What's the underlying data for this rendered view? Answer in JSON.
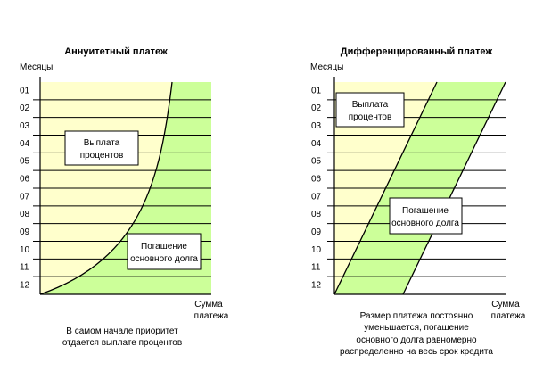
{
  "colors": {
    "interest_fill": "#ffffcc",
    "principal_fill": "#ccff99",
    "outline": "#000000"
  },
  "left": {
    "title": "Аннуитетный платеж",
    "y_axis_label": "Месяцы",
    "x_axis_label_line1": "Сумма",
    "x_axis_label_line2": "платежа",
    "months": [
      "01",
      "02",
      "03",
      "04",
      "05",
      "06",
      "07",
      "08",
      "09",
      "10",
      "11",
      "12"
    ],
    "interest_box_line1": "Выплата",
    "interest_box_line2": "процентов",
    "principal_box_line1": "Погашение",
    "principal_box_line2": "основного долга",
    "caption_line1": "В самом начале приоритет",
    "caption_line2": "отдается выплате процентов"
  },
  "right": {
    "title": "Дифференцированный платеж",
    "y_axis_label": "Месяцы",
    "x_axis_label_line1": "Сумма",
    "x_axis_label_line2": "платежа",
    "months": [
      "01",
      "02",
      "03",
      "04",
      "05",
      "06",
      "07",
      "08",
      "09",
      "10",
      "11",
      "12"
    ],
    "interest_box_line1": "Выплата",
    "interest_box_line2": "процентов",
    "principal_box_line1": "Погашение",
    "principal_box_line2": "основного долга",
    "caption_line1": "Размер платежа постоянно",
    "caption_line2": "уменьшается, погашение",
    "caption_line3": "основного долга равномерно",
    "caption_line4": "распределенно на весь срок кредита"
  }
}
